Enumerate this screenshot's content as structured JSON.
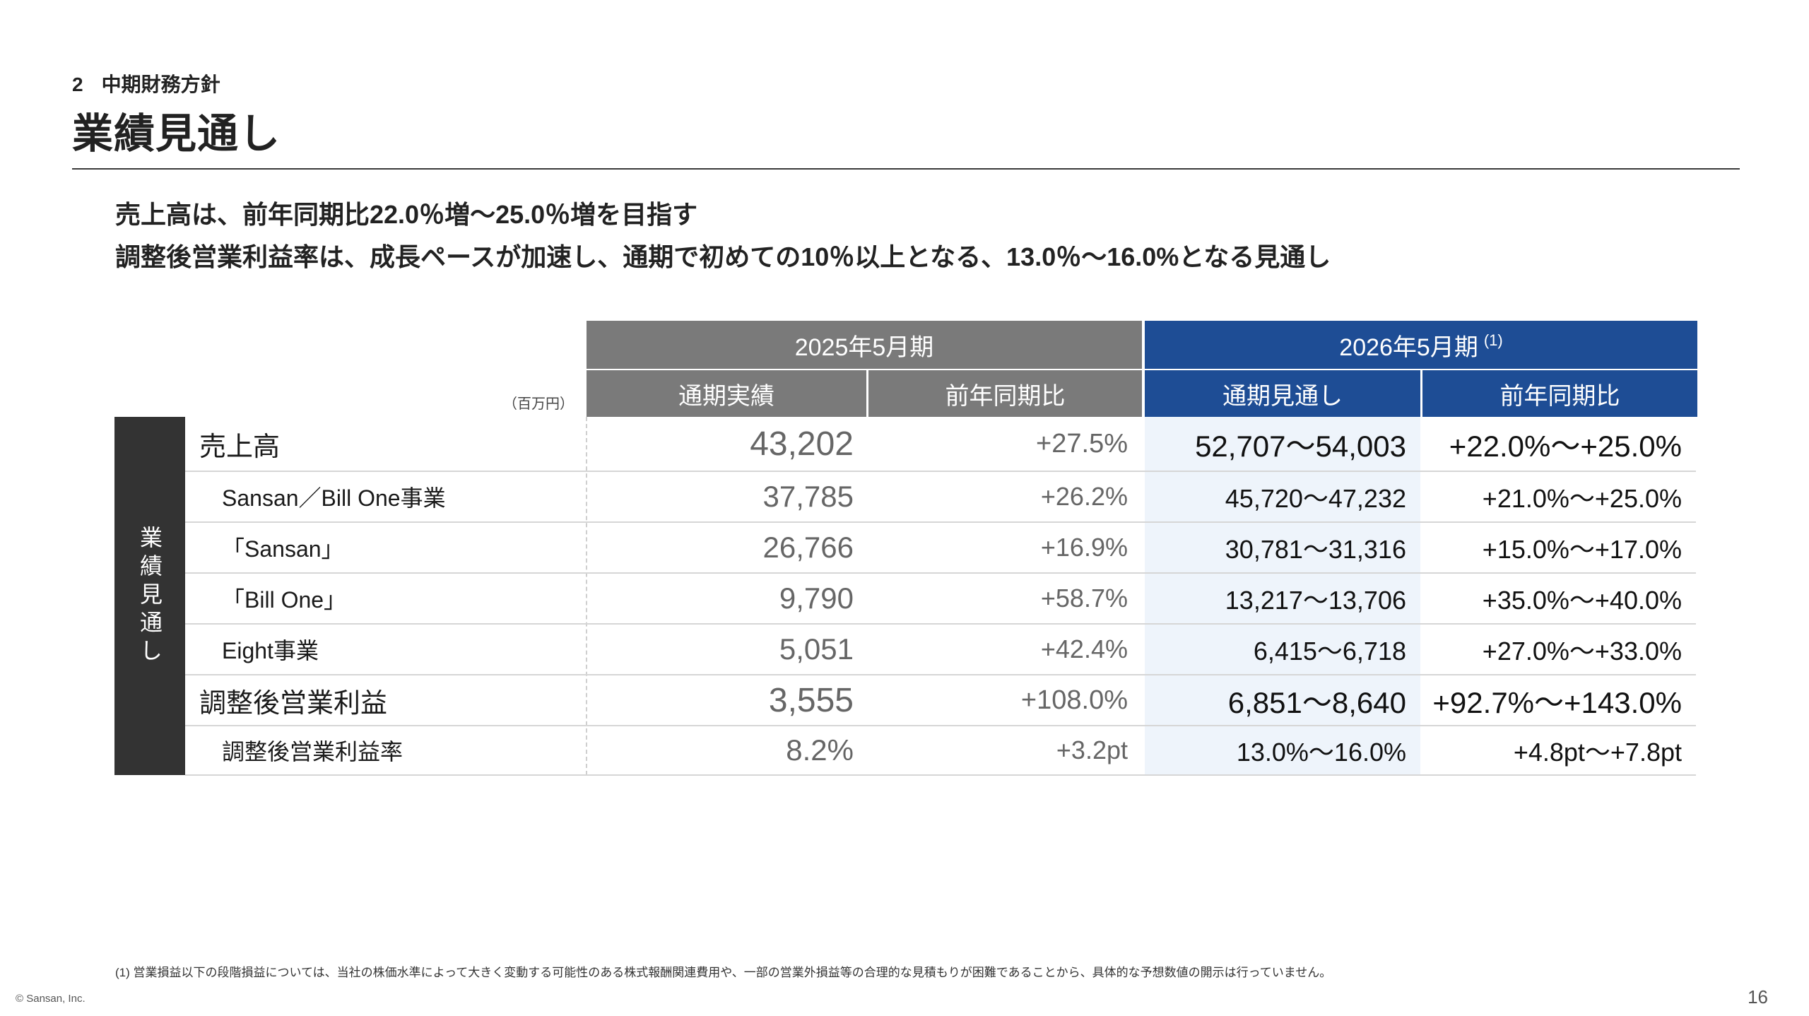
{
  "section": {
    "number": "2",
    "name": "中期財務方針"
  },
  "title": "業績見通し",
  "headlines": [
    "売上高は、前年同期比22.0％増〜25.0％増を目指す",
    "調整後営業利益率は、成長ペースが加速し、通期で初めての10％以上となる、13.0％〜16.0%となる見通し"
  ],
  "table": {
    "unit": "（百万円）",
    "period_prev": {
      "label": "2025年5月期",
      "col_actual": "通期実績",
      "col_yoy": "前年同期比"
    },
    "period_next": {
      "label": "2026年5月期",
      "note": "(1)",
      "col_forecast": "通期見通し",
      "col_yoy": "前年同期比"
    },
    "side_label": "業績見通し",
    "rows": [
      {
        "label": "売上高",
        "actual": "43,202",
        "yoy_prev": "+27.5%",
        "forecast": "52,707〜54,003",
        "yoy_next": "+22.0%〜+25.0%"
      },
      {
        "label": "Sansan／Bill One事業",
        "actual": "37,785",
        "yoy_prev": "+26.2%",
        "forecast": "45,720〜47,232",
        "yoy_next": "+21.0%〜+25.0%"
      },
      {
        "label": "「Sansan」",
        "actual": "26,766",
        "yoy_prev": "+16.9%",
        "forecast": "30,781〜31,316",
        "yoy_next": "+15.0%〜+17.0%"
      },
      {
        "label": "「Bill One」",
        "actual": "9,790",
        "yoy_prev": "+58.7%",
        "forecast": "13,217〜13,706",
        "yoy_next": "+35.0%〜+40.0%"
      },
      {
        "label": "Eight事業",
        "actual": "5,051",
        "yoy_prev": "+42.4%",
        "forecast": "6,415〜6,718",
        "yoy_next": "+27.0%〜+33.0%"
      },
      {
        "label": "調整後営業利益",
        "actual": "3,555",
        "yoy_prev": "+108.0%",
        "forecast": "6,851〜8,640",
        "yoy_next": "+92.7%〜+143.0%"
      },
      {
        "label": "調整後営業利益率",
        "actual": "8.2%",
        "yoy_prev": "+3.2pt",
        "forecast": "13.0%〜16.0%",
        "yoy_next": "+4.8pt〜+7.8pt"
      }
    ]
  },
  "footnote": "(1) 営業損益以下の段階損益については、当社の株価水準によって大きく変動する可能性のある株式報酬関連費用や、一部の営業外損益等の合理的な見積もりが困難であることから、具体的な予想数値の開示は行っていません。",
  "copyright": "© Sansan, Inc.",
  "page_number": "16",
  "colors": {
    "prev_header": "#7a7a7a",
    "next_header": "#1e4d95",
    "side_bar": "#333333",
    "forecast_band": "#eef4fb"
  }
}
